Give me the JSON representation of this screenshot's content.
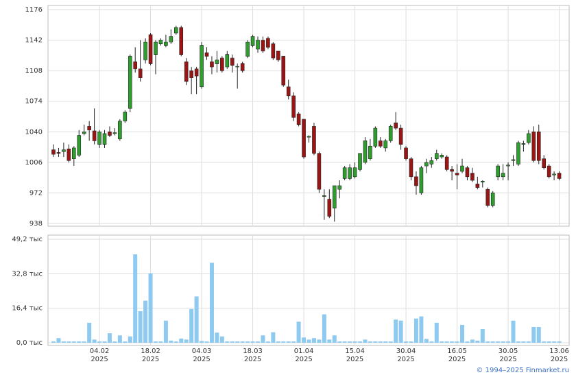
{
  "chart_data": [
    {
      "type": "candlestick",
      "categories": [
        null,
        null,
        null,
        null,
        null,
        null,
        null,
        null,
        null,
        "04.02\n2025",
        null,
        null,
        null,
        null,
        null,
        null,
        null,
        null,
        null,
        "18.02\n2025",
        null,
        null,
        null,
        null,
        null,
        null,
        null,
        null,
        null,
        "04.03\n2025",
        null,
        null,
        null,
        null,
        null,
        null,
        null,
        null,
        null,
        "18.03\n2025",
        null,
        null,
        null,
        null,
        null,
        null,
        null,
        null,
        null,
        "01.04\n2025",
        null,
        null,
        null,
        null,
        null,
        null,
        null,
        null,
        null,
        "15.04\n2025",
        null,
        null,
        null,
        null,
        null,
        null,
        null,
        null,
        null,
        "30.04\n2025",
        null,
        null,
        null,
        null,
        null,
        null,
        null,
        null,
        null,
        "16.05\n2025",
        null,
        null,
        null,
        null,
        null,
        null,
        null,
        null,
        null,
        "30.05\n2025",
        null,
        null,
        null,
        null,
        null,
        null,
        null,
        null,
        null,
        "13.06\n2025"
      ],
      "open": [
        1020,
        1017,
        1018,
        1021,
        1010,
        1014,
        1038,
        1046,
        1041,
        1026,
        1026,
        1040,
        1038,
        1032,
        1052,
        1066,
        1118,
        1110,
        1120,
        1148,
        1126,
        1138,
        1136,
        1140,
        1150,
        1156,
        1118,
        1108,
        1110,
        1090,
        1128,
        1118,
        1116,
        1122,
        1112,
        1122,
        1112,
        1116,
        1124,
        1136,
        1132,
        1142,
        1144,
        1138,
        1130,
        1124,
        1090,
        1080,
        1060,
        1054,
        1034,
        1046,
        1016,
        968,
        965,
        955,
        976,
        988,
        988,
        990,
        998,
        1006,
        1010,
        1024,
        1030,
        1022,
        1030,
        1050,
        1044,
        1022,
        1010,
        990,
        972,
        1002,
        1004,
        1010,
        1012,
        1012,
        998,
        994,
        996,
        1000,
        994,
        982,
        984,
        976,
        958,
        990,
        990,
        1002,
        1008,
        1004,
        1026,
        1028,
        1040,
        1040,
        1010,
        1002,
        992,
        994
      ],
      "high": [
        1026,
        1022,
        1028,
        1026,
        1024,
        1042,
        1048,
        1052,
        1066,
        1042,
        1042,
        1046,
        1044,
        1054,
        1064,
        1126,
        1134,
        1142,
        1144,
        1150,
        1142,
        1144,
        1148,
        1154,
        1158,
        1158,
        1122,
        1112,
        1112,
        1140,
        1134,
        1124,
        1130,
        1124,
        1130,
        1126,
        1116,
        1118,
        1142,
        1148,
        1146,
        1146,
        1146,
        1140,
        1130,
        1124,
        1098,
        1084,
        1062,
        1054,
        1036,
        1050,
        1018,
        976,
        976,
        980,
        986,
        1002,
        1004,
        1006,
        1016,
        1034,
        1032,
        1046,
        1034,
        1032,
        1048,
        1062,
        1048,
        1024,
        1012,
        996,
        1002,
        1010,
        1012,
        1020,
        1016,
        1014,
        1002,
        1004,
        1010,
        1002,
        1000,
        990,
        986,
        978,
        974,
        1004,
        1004,
        1006,
        1014,
        1030,
        1030,
        1042,
        1046,
        1048,
        1014,
        1004,
        996,
        996
      ],
      "low": [
        1012,
        1012,
        1012,
        1006,
        1002,
        1012,
        1036,
        1030,
        1026,
        1022,
        1022,
        1034,
        1036,
        1030,
        1050,
        1062,
        1106,
        1096,
        1116,
        1114,
        1104,
        1136,
        1134,
        1138,
        1148,
        1124,
        1092,
        1082,
        1082,
        1088,
        1120,
        1104,
        1106,
        1106,
        1110,
        1106,
        1088,
        1106,
        1122,
        1134,
        1128,
        1128,
        1132,
        1120,
        1118,
        1090,
        1076,
        1052,
        1046,
        1010,
        1028,
        1014,
        972,
        942,
        944,
        940,
        966,
        986,
        986,
        988,
        996,
        1004,
        1008,
        1022,
        1022,
        1018,
        1028,
        1042,
        1020,
        1008,
        986,
        970,
        970,
        994,
        1000,
        1008,
        1010,
        996,
        986,
        976,
        994,
        986,
        984,
        976,
        978,
        956,
        956,
        986,
        986,
        986,
        1002,
        1002,
        1018,
        1026,
        1006,
        1004,
        998,
        988,
        986,
        986
      ],
      "close": [
        1015,
        1016,
        1020,
        1008,
        1022,
        1036,
        1040,
        1042,
        1030,
        1040,
        1038,
        1036,
        1039,
        1052,
        1062,
        1124,
        1110,
        1100,
        1140,
        1116,
        1140,
        1142,
        1140,
        1146,
        1156,
        1126,
        1096,
        1100,
        1102,
        1136,
        1124,
        1112,
        1120,
        1108,
        1126,
        1114,
        1113,
        1108,
        1140,
        1146,
        1142,
        1130,
        1134,
        1122,
        1120,
        1092,
        1080,
        1056,
        1048,
        1012,
        1035,
        1016,
        976,
        969,
        946,
        980,
        980,
        1000,
        1000,
        1000,
        1016,
        1030,
        1024,
        1044,
        1024,
        1030,
        1046,
        1044,
        1026,
        1010,
        990,
        980,
        1000,
        1006,
        1008,
        1016,
        1014,
        998,
        996,
        992,
        1002,
        990,
        986,
        978,
        985,
        958,
        972,
        1002,
        994,
        1003,
        1009,
        1028,
        1027,
        1038,
        1008,
        1008,
        1000,
        990,
        993,
        988
      ],
      "up_color": "#2f9e2f",
      "down_color": "#9c1515",
      "ylim": [
        938,
        1176
      ],
      "yticks": [
        938,
        972,
        1006,
        1040,
        1074,
        1108,
        1142,
        1176
      ],
      "grid": true
    },
    {
      "type": "bar",
      "values": [
        0.6,
        2.2,
        0.6,
        0.6,
        0.6,
        0.6,
        0.6,
        9.5,
        1.5,
        0.6,
        0.6,
        4.5,
        0.6,
        3.5,
        0.6,
        3,
        42,
        15,
        20,
        33,
        0.6,
        0.6,
        10.5,
        1,
        0.6,
        2,
        1.5,
        16,
        22,
        0.8,
        0.6,
        38,
        4.8,
        3,
        0.6,
        0.6,
        0.6,
        0.6,
        0.6,
        0.6,
        0.6,
        3.5,
        0.6,
        5,
        0.6,
        0.6,
        0.6,
        0.6,
        10,
        2.5,
        1.5,
        2.2,
        1.5,
        13.5,
        1.5,
        3.5,
        0.6,
        0.6,
        0.6,
        0.6,
        0.6,
        1.5,
        0.6,
        0.6,
        0.6,
        0.6,
        0.6,
        11,
        10.5,
        0.6,
        0.6,
        11.5,
        12.5,
        1.8,
        0.6,
        9.5,
        0.6,
        0.6,
        0.6,
        0.6,
        8.5,
        0.6,
        1.5,
        1,
        6.5,
        0.6,
        0.6,
        0.6,
        0.6,
        0.6,
        10.5,
        0.6,
        0.6,
        0.6,
        7.5,
        7.5,
        0.6,
        0.6,
        0.6,
        0.6
      ],
      "color": "#8ec9f0",
      "ylim": [
        0,
        49.2
      ],
      "yticks": [
        {
          "value": 0,
          "label": "0,0 тыс"
        },
        {
          "value": 16.4,
          "label": "16,4 тыс"
        },
        {
          "value": 32.8,
          "label": "32,8 тыс"
        },
        {
          "value": 49.2,
          "label": "49,2 тыс"
        }
      ],
      "grid": true
    }
  ],
  "footer": "© 1994–2025 Finmarket.ru"
}
